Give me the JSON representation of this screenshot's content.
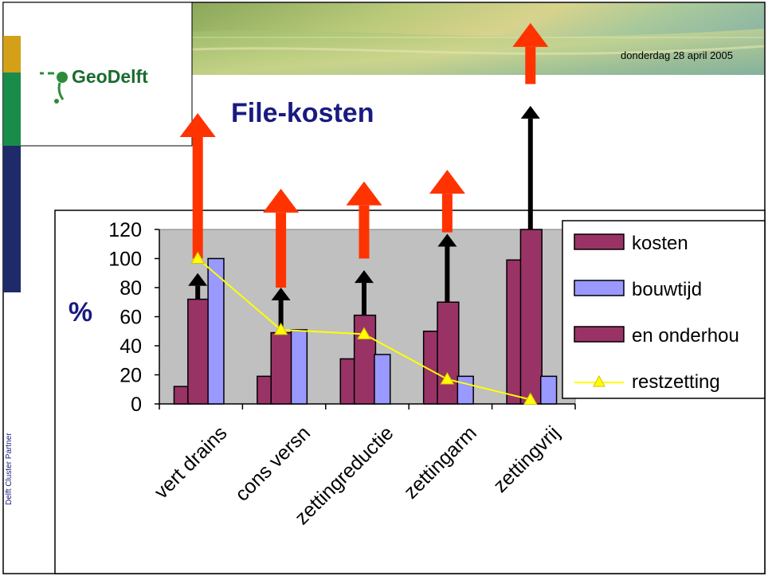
{
  "header": {
    "logo_text": "GeoDelft",
    "date": "donderdag 28 april 2005"
  },
  "slide": {
    "title": "File-kosten",
    "side_label": "Delft Cluster Partner"
  },
  "colors": {
    "title": "#1a1a80",
    "bar_series_1": "#993366",
    "bar_series_3": "#993366",
    "bar_series_2": "#9999ff",
    "line": "#ffff00",
    "plot_bg": "#c0c0c0",
    "red_arrow": "#ff3300",
    "black_arrow": "#000000",
    "side_orange": "#d4a017",
    "side_green": "#1a8c4a",
    "side_navy": "#1f2a6b"
  },
  "chart_data": {
    "type": "bar",
    "categories": [
      "vert drains",
      "cons versn",
      "zettingreductie",
      "zettingarm",
      "zettingvrij"
    ],
    "ylabel": "%",
    "ylim": [
      0,
      120
    ],
    "yticks": [
      0,
      20,
      40,
      60,
      80,
      100,
      120
    ],
    "grid": false,
    "legend_position": "right",
    "series": [
      {
        "name": "kosten",
        "type": "bar",
        "values": [
          12,
          19,
          31,
          50,
          99
        ]
      },
      {
        "name": "en onderhou",
        "type": "bar",
        "values": [
          72,
          49,
          61,
          70,
          120
        ]
      },
      {
        "name": "bouwtijd",
        "type": "bar",
        "values": [
          100,
          51,
          34,
          19,
          19
        ]
      },
      {
        "name": "restzetting",
        "type": "line",
        "values": [
          100,
          51,
          48,
          17,
          3
        ]
      }
    ],
    "annotations": {
      "black_arrows_top": [
        90,
        80,
        92,
        117,
        205
      ],
      "red_arrows_range": [
        [
          100,
          200
        ],
        [
          80,
          148
        ],
        [
          100,
          153
        ],
        [
          118,
          161
        ],
        [
          220,
          262
        ]
      ]
    }
  }
}
